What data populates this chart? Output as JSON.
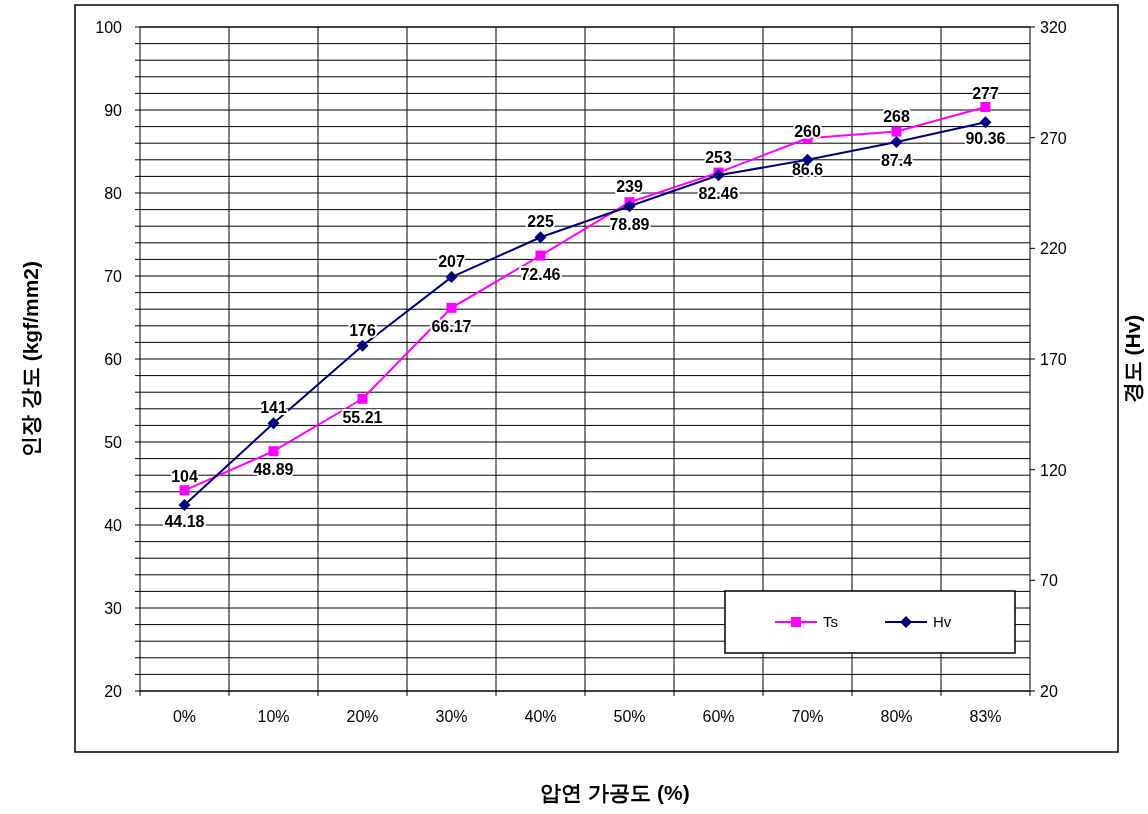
{
  "chart_data": {
    "type": "line",
    "xlabel": "압연 가공도 (%)",
    "ylabel": "인장 강도 (kgf/mm2)",
    "y2label": "경도 (Hv)",
    "categories": [
      "0%",
      "10%",
      "20%",
      "30%",
      "40%",
      "50%",
      "60%",
      "70%",
      "80%",
      "83%"
    ],
    "series": [
      {
        "name": "Ts",
        "color": "#ff00ff",
        "marker": "square",
        "values": [
          44.18,
          48.89,
          55.21,
          66.17,
          72.46,
          78.89,
          82.46,
          86.6,
          87.4,
          90.36
        ]
      },
      {
        "name": "Hv",
        "color": "#000080",
        "marker": "diamond",
        "axis": "y2",
        "values": [
          104,
          141,
          176,
          207,
          225,
          239,
          253,
          260,
          268,
          277
        ]
      }
    ],
    "ylim": [
      20,
      100
    ],
    "yticks": [
      20,
      {
        "value": 22,
        "label": null
      },
      {
        "value": 24,
        "label": null
      },
      {
        "value": 26,
        "label": null
      },
      {
        "value": 28,
        "label": null
      },
      30,
      {
        "value": 32,
        "label": null
      },
      {
        "value": 34,
        "label": null
      },
      {
        "value": 36,
        "label": null
      },
      {
        "value": 38,
        "label": null
      },
      40,
      {
        "value": 42,
        "label": null
      },
      {
        "value": 44,
        "label": null
      },
      {
        "value": 46,
        "label": null
      },
      {
        "value": 48,
        "label": null
      },
      50,
      {
        "value": 52,
        "label": null
      },
      {
        "value": 54,
        "label": null
      },
      {
        "value": 56,
        "label": null
      },
      {
        "value": 58,
        "label": null
      },
      60,
      {
        "value": 62,
        "label": null
      },
      {
        "value": 64,
        "label": null
      },
      {
        "value": 66,
        "label": null
      },
      {
        "value": 68,
        "label": null
      },
      70,
      {
        "value": 72,
        "label": null
      },
      {
        "value": 74,
        "label": null
      },
      {
        "value": 76,
        "label": null
      },
      {
        "value": 78,
        "label": null
      },
      80,
      {
        "value": 82,
        "label": null
      },
      {
        "value": 84,
        "label": null
      },
      {
        "value": 86,
        "label": null
      },
      {
        "value": 88,
        "label": null
      },
      90,
      {
        "value": 92,
        "label": null
      },
      {
        "value": 94,
        "label": null
      },
      {
        "value": 96,
        "label": null
      },
      {
        "value": 98,
        "label": null
      },
      100
    ],
    "y2lim": [
      20,
      320
    ],
    "y2ticks": [
      20,
      70,
      120,
      170,
      220,
      270,
      320
    ],
    "grid": true,
    "legend": "bottom right",
    "data_labels": true
  }
}
